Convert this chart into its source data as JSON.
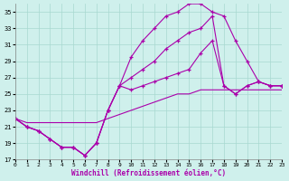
{
  "xlabel": "Windchill (Refroidissement éolien,°C)",
  "background_color": "#cff0ec",
  "grid_color": "#a8d8d0",
  "line_color": "#aa00aa",
  "xlim": [
    0,
    23
  ],
  "ylim": [
    17,
    36
  ],
  "yticks": [
    17,
    19,
    21,
    23,
    25,
    27,
    29,
    31,
    33,
    35
  ],
  "xticks": [
    0,
    1,
    2,
    3,
    4,
    5,
    6,
    7,
    8,
    9,
    10,
    11,
    12,
    13,
    14,
    15,
    16,
    17,
    18,
    19,
    20,
    21,
    22,
    23
  ],
  "series": [
    {
      "x": [
        0,
        1,
        2,
        3,
        4,
        5,
        6,
        7,
        8,
        9,
        10,
        11,
        12,
        13,
        14,
        15,
        16,
        17,
        18,
        19,
        20,
        21,
        22,
        23
      ],
      "y": [
        22,
        21,
        20.5,
        19.5,
        18.5,
        18.5,
        17.5,
        19.0,
        23.0,
        26.0,
        29.5,
        31.5,
        33.0,
        34.5,
        35.0,
        36.0,
        36.0,
        35.0,
        34.5,
        31.5,
        29.0,
        26.5,
        26.0,
        26.0
      ],
      "marker": true,
      "dashed": false
    },
    {
      "x": [
        0,
        1,
        2,
        3,
        4,
        5,
        6,
        7,
        8,
        9,
        10,
        11,
        12,
        13,
        14,
        15,
        16,
        17,
        18,
        19,
        20,
        21,
        22,
        23
      ],
      "y": [
        22,
        21,
        20.5,
        19.5,
        18.5,
        18.5,
        17.5,
        19.0,
        23.0,
        26.0,
        27.0,
        28.0,
        29.0,
        30.5,
        31.5,
        32.5,
        33.0,
        34.5,
        26.0,
        25.0,
        26.0,
        26.5,
        26.0,
        26.0
      ],
      "marker": true,
      "dashed": false
    },
    {
      "x": [
        0,
        1,
        2,
        3,
        4,
        5,
        6,
        7,
        8,
        9,
        10,
        11,
        12,
        13,
        14,
        15,
        16,
        17,
        18,
        19,
        20,
        21,
        22,
        23
      ],
      "y": [
        22,
        21,
        20.5,
        19.5,
        18.5,
        18.5,
        17.5,
        19.0,
        23.0,
        26.0,
        25.5,
        26.0,
        26.5,
        27.0,
        27.5,
        28.0,
        30.0,
        31.5,
        26.0,
        25.0,
        26.0,
        26.5,
        26.0,
        26.0
      ],
      "marker": true,
      "dashed": false
    },
    {
      "x": [
        0,
        1,
        2,
        3,
        4,
        5,
        6,
        7,
        8,
        9,
        10,
        11,
        12,
        13,
        14,
        15,
        16,
        17,
        18,
        19,
        20,
        21,
        22,
        23
      ],
      "y": [
        22,
        21.5,
        21.5,
        21.5,
        21.5,
        21.5,
        21.5,
        21.5,
        22.0,
        22.5,
        23.0,
        23.5,
        24.0,
        24.5,
        25.0,
        25.0,
        25.5,
        25.5,
        25.5,
        25.5,
        25.5,
        25.5,
        25.5,
        25.5
      ],
      "marker": false,
      "dashed": false
    }
  ]
}
